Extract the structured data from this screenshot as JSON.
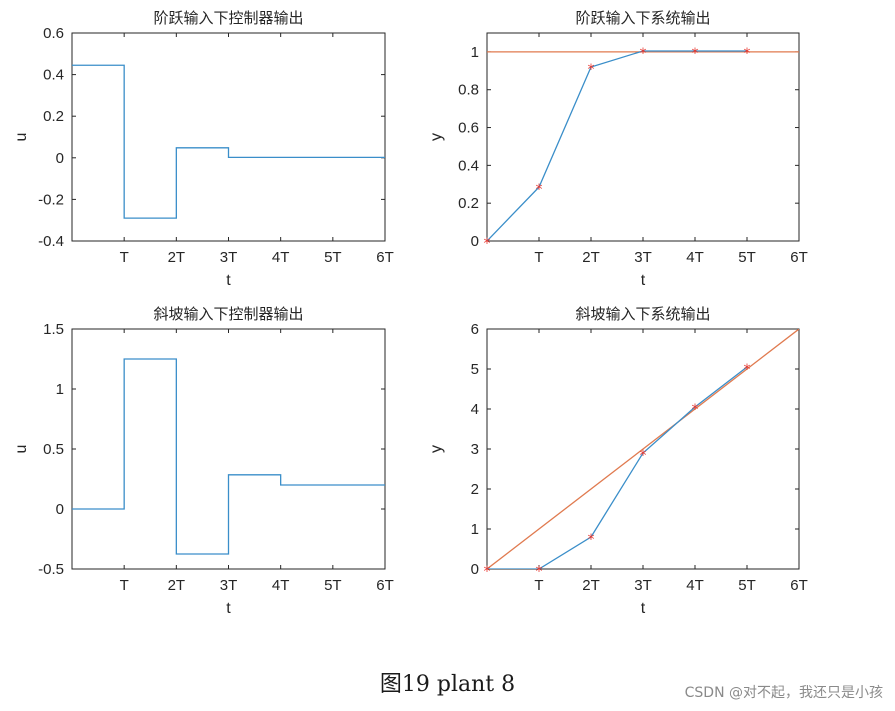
{
  "caption": "图19 plant 8",
  "watermark": "CSDN @对不起，我还只是小孩",
  "colors": {
    "series1": "#3a8ec9",
    "series2": "#e07a4f",
    "marker": "#e8352e"
  },
  "chart_data": [
    {
      "type": "line",
      "title": "阶跃输入下控制器输出",
      "xlabel": "t",
      "ylabel": "u",
      "xlim": [
        0,
        6
      ],
      "ylim": [
        -0.4,
        0.6
      ],
      "xticks": [
        1,
        2,
        3,
        4,
        5,
        6
      ],
      "xtick_labels": [
        "T",
        "2T",
        "3T",
        "4T",
        "5T",
        "6T"
      ],
      "yticks": [
        -0.4,
        -0.2,
        0,
        0.2,
        0.4,
        0.6
      ],
      "ytick_labels": [
        "-0.4",
        "-0.2",
        "0",
        "0.2",
        "0.4",
        "0.6"
      ],
      "series": [
        {
          "style": "step",
          "color": "#3a8ec9",
          "x": [
            0,
            1,
            2,
            3,
            6
          ],
          "y": [
            0.445,
            -0.29,
            0.048,
            0.002,
            0.002
          ]
        }
      ]
    },
    {
      "type": "line",
      "title": "阶跃输入下系统输出",
      "xlabel": "t",
      "ylabel": "y",
      "xlim": [
        0,
        6
      ],
      "ylim": [
        0,
        1.1
      ],
      "xticks": [
        1,
        2,
        3,
        4,
        5,
        6
      ],
      "xtick_labels": [
        "T",
        "2T",
        "3T",
        "4T",
        "5T",
        "6T"
      ],
      "yticks": [
        0,
        0.2,
        0.4,
        0.6,
        0.8,
        1
      ],
      "ytick_labels": [
        "0",
        "0.2",
        "0.4",
        "0.6",
        "0.8",
        "1"
      ],
      "series": [
        {
          "style": "line",
          "color": "#e07a4f",
          "x": [
            0,
            6
          ],
          "y": [
            1,
            1
          ]
        },
        {
          "style": "line",
          "color": "#3a8ec9",
          "markers": true,
          "x": [
            0,
            1,
            2,
            3,
            4,
            5
          ],
          "y": [
            0,
            0.285,
            0.92,
            1.005,
            1.005,
            1.005
          ]
        }
      ]
    },
    {
      "type": "line",
      "title": "斜坡输入下控制器输出",
      "xlabel": "t",
      "ylabel": "u",
      "xlim": [
        0,
        6
      ],
      "ylim": [
        -0.5,
        1.5
      ],
      "xticks": [
        1,
        2,
        3,
        4,
        5,
        6
      ],
      "xtick_labels": [
        "T",
        "2T",
        "3T",
        "4T",
        "5T",
        "6T"
      ],
      "yticks": [
        -0.5,
        0,
        0.5,
        1,
        1.5
      ],
      "ytick_labels": [
        "-0.5",
        "0",
        "0.5",
        "1",
        "1.5"
      ],
      "series": [
        {
          "style": "step",
          "color": "#3a8ec9",
          "x": [
            0,
            1,
            2,
            3,
            4,
            6
          ],
          "y": [
            0,
            1.25,
            -0.375,
            0.285,
            0.2,
            0.2
          ]
        }
      ]
    },
    {
      "type": "line",
      "title": "斜坡输入下系统输出",
      "xlabel": "t",
      "ylabel": "y",
      "xlim": [
        0,
        6
      ],
      "ylim": [
        0,
        6
      ],
      "xticks": [
        1,
        2,
        3,
        4,
        5,
        6
      ],
      "xtick_labels": [
        "T",
        "2T",
        "3T",
        "4T",
        "5T",
        "6T"
      ],
      "yticks": [
        0,
        1,
        2,
        3,
        4,
        5,
        6
      ],
      "ytick_labels": [
        "0",
        "1",
        "2",
        "3",
        "4",
        "5",
        "6"
      ],
      "series": [
        {
          "style": "line",
          "color": "#e07a4f",
          "x": [
            0,
            6
          ],
          "y": [
            0,
            6
          ]
        },
        {
          "style": "line",
          "color": "#3a8ec9",
          "markers": true,
          "x": [
            0,
            1,
            2,
            3,
            4,
            5
          ],
          "y": [
            0,
            0,
            0.8,
            2.9,
            4.05,
            5.05
          ]
        }
      ]
    }
  ]
}
